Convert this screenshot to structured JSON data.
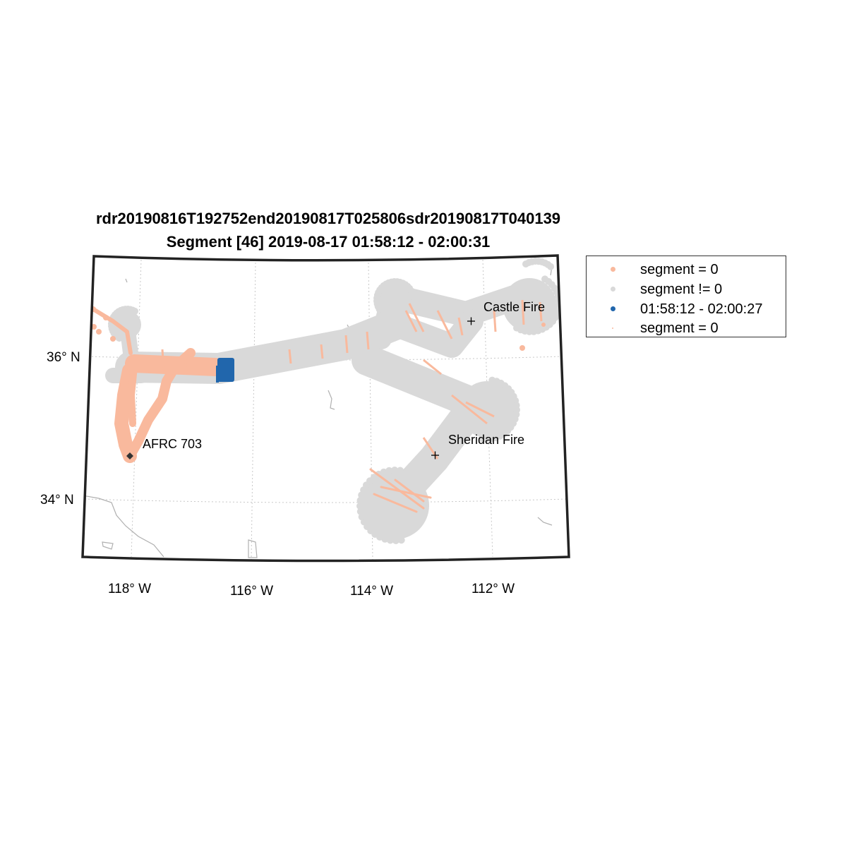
{
  "title": {
    "line1": "rdr20190816T192752end20190817T025806sdr20190817T040139",
    "line2": "Segment [46] 2019-08-17 01:58:12 - 02:00:31"
  },
  "axes": {
    "lat_ticks": [
      "36° N",
      "34° N"
    ],
    "lon_ticks": [
      "118° W",
      "116° W",
      "114° W",
      "112° W"
    ]
  },
  "places": [
    {
      "label": "AFRC 703",
      "marker": "diamond"
    },
    {
      "label": "Castle Fire",
      "marker": "plus"
    },
    {
      "label": "Sheridan Fire",
      "marker": "plus"
    }
  ],
  "legend": [
    {
      "label": "segment = 0",
      "color": "#f9b99d",
      "marker": "dot"
    },
    {
      "label": "segment != 0",
      "color": "#d9d9d9",
      "marker": "dot"
    },
    {
      "label": "01:58:12 - 02:00:27",
      "color": "#2166ac",
      "marker": "dot"
    },
    {
      "label": "segment = 0",
      "color": "#f9b99d",
      "marker": "small-dot"
    }
  ],
  "colors": {
    "segment_zero": "#f9b99d",
    "segment_nonzero": "#d9d9d9",
    "current_segment": "#2166ac",
    "frame": "#222222",
    "grid": "#bbbbbb",
    "coastline": "#b0b0b0"
  }
}
